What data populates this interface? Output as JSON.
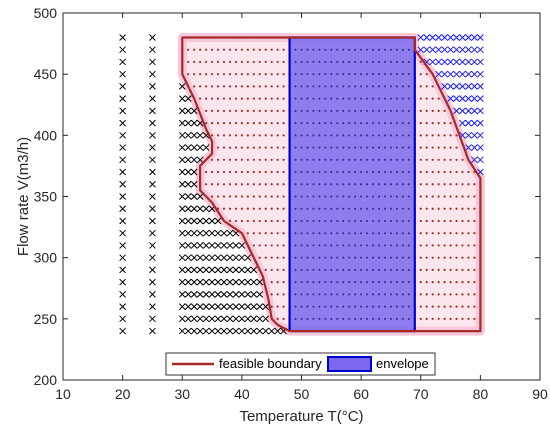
{
  "chart_data": {
    "type": "area",
    "xlabel": "Temperature T(°C)",
    "ylabel": "Flow rate V(m3/h)",
    "xlim": [
      10,
      90
    ],
    "ylim": [
      200,
      500
    ],
    "xticks": [
      10,
      20,
      30,
      40,
      50,
      60,
      70,
      80,
      90
    ],
    "yticks": [
      200,
      250,
      300,
      350,
      400,
      450,
      500
    ],
    "grid": false,
    "legend_position": "bottom-center",
    "series": [
      {
        "name": "feasible boundary",
        "style": "line",
        "color": "#a52a2a",
        "points": [
          [
            30,
            480
          ],
          [
            48,
            480
          ],
          [
            69,
            480
          ],
          [
            69,
            470
          ],
          [
            72,
            450
          ],
          [
            75,
            420
          ],
          [
            78,
            380
          ],
          [
            80,
            365
          ],
          [
            80,
            240
          ],
          [
            69,
            240
          ],
          [
            48,
            240
          ],
          [
            48,
            240
          ],
          [
            46,
            245
          ],
          [
            45,
            250
          ],
          [
            44.5,
            265
          ],
          [
            43.5,
            285
          ],
          [
            42,
            300
          ],
          [
            41,
            310
          ],
          [
            40,
            320
          ],
          [
            37,
            330
          ],
          [
            35,
            345
          ],
          [
            33,
            355
          ],
          [
            33,
            375
          ],
          [
            35,
            385
          ],
          [
            35,
            395
          ],
          [
            34,
            405
          ],
          [
            32,
            430
          ],
          [
            30,
            450
          ],
          [
            30,
            480
          ]
        ]
      },
      {
        "name": "envelope",
        "style": "filled-rectangle",
        "color": "#0000cd",
        "fill": "#7b68ee",
        "x": [
          48,
          69
        ],
        "y": [
          240,
          480
        ]
      }
    ],
    "marker_grids": {
      "infeasible_x_markers": {
        "color": "#000000",
        "columns_sparse": [
          20,
          25
        ],
        "x_start": 30,
        "x_step": 1,
        "y_values_from": 240,
        "y_to": 480,
        "y_step": 10
      },
      "infeasible_blue_x_markers": {
        "color": "#1a1aff",
        "x_from": 69,
        "x_to": 80,
        "y_from": 370,
        "y_to": 480
      },
      "feasible_dot_markers": {
        "color": "#a52a2a"
      }
    }
  }
}
